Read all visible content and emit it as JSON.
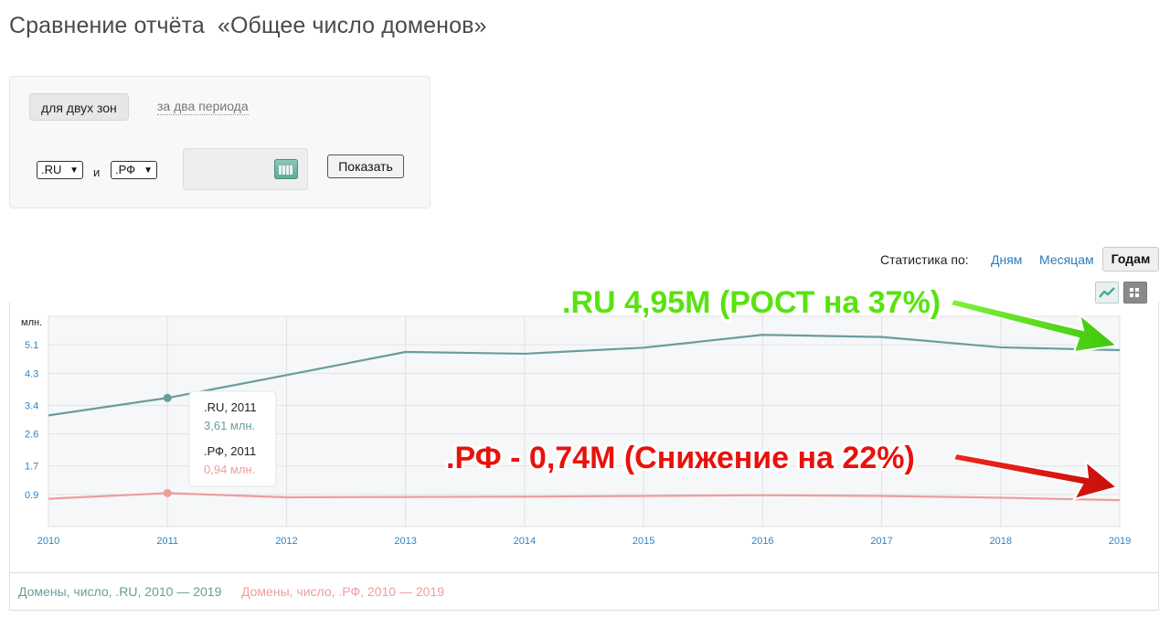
{
  "page": {
    "title": "Сравнение отчёта  «Общее число доменов»"
  },
  "filters": {
    "tab_active": "для двух зон",
    "tab_other": "за два периода",
    "zone1": ".RU",
    "zone2": ".РФ",
    "and_label": "и",
    "show_button": "Показать"
  },
  "stats_by": {
    "label": "Статистика по:",
    "days": "Дням",
    "months": "Месяцам",
    "years": "Годам"
  },
  "colors": {
    "ru": "#6a9c9d",
    "rf": "#ef9c9c",
    "green_annotation": "#58e30e",
    "red_annotation": "#e8120c"
  },
  "chart_data": {
    "type": "line",
    "y_unit_label": "млн.",
    "ylim": [
      0,
      5.9
    ],
    "y_ticks": [
      "0.9",
      "1.7",
      "2.6",
      "3.4",
      "4.3",
      "5.1"
    ],
    "x": [
      "2010",
      "2011",
      "2012",
      "2013",
      "2014",
      "2015",
      "2016",
      "2017",
      "2018",
      "2019"
    ],
    "grid": true,
    "series": [
      {
        "name": "Домены, число, .RU, 2010 — 2019",
        "color": "#6a9c9d",
        "values": [
          3.12,
          3.61,
          4.25,
          4.9,
          4.85,
          5.02,
          5.38,
          5.32,
          5.03,
          4.95
        ]
      },
      {
        "name": "Домены, число, .РФ, 2010 — 2019",
        "color": "#ef9c9c",
        "values": [
          0.78,
          0.94,
          0.82,
          0.83,
          0.84,
          0.86,
          0.88,
          0.86,
          0.81,
          0.74
        ]
      }
    ],
    "tooltip": {
      "ru_title": ".RU, 2011",
      "ru_value": "3,61 млн.",
      "rf_title": ".РФ, 2011",
      "rf_value": "0,94 млн."
    },
    "annotations": {
      "ru": ".RU 4,95M (РОСТ на 37%)",
      "rf": ".РФ - 0,74M (Снижение на 22%)"
    }
  }
}
